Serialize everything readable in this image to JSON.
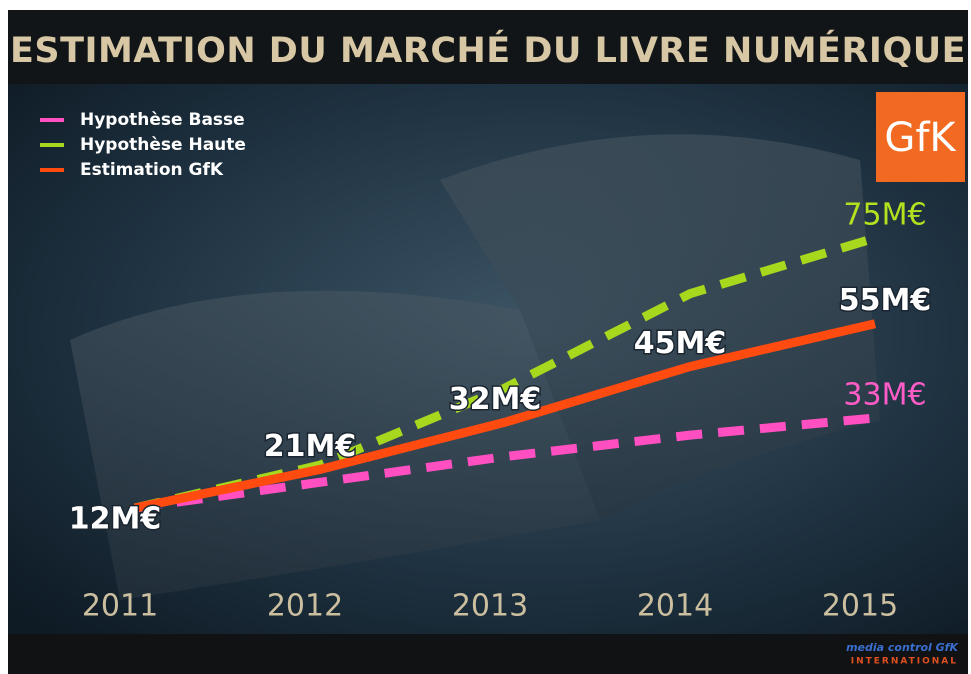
{
  "chart_data": {
    "type": "line",
    "title": "ESTIMATION DU MARCHÉ DU LIVRE NUMÉRIQUE",
    "categories": [
      "2011",
      "2012",
      "2013",
      "2014",
      "2015"
    ],
    "series": [
      {
        "name": "Hypothèse Basse",
        "color": "#ff4fc0",
        "dash": true,
        "values": [
          12,
          18,
          24,
          29,
          33
        ],
        "value_labels": [
          null,
          null,
          null,
          null,
          "33M€"
        ]
      },
      {
        "name": "Hypothèse Haute",
        "color": "#a8d81e",
        "dash": true,
        "values": [
          12,
          22,
          40,
          62,
          75
        ],
        "value_labels": [
          null,
          null,
          null,
          null,
          "75M€"
        ]
      },
      {
        "name": "Estimation GfK",
        "color": "#ff4a10",
        "dash": false,
        "values": [
          12,
          21,
          32,
          45,
          55
        ],
        "value_labels": [
          "12M€",
          "21M€",
          "32M€",
          "45M€",
          "55M€"
        ]
      }
    ],
    "legend": "top-left",
    "logo": "GfK",
    "footer": [
      "media control GfK",
      "INTERNATIONAL"
    ]
  }
}
